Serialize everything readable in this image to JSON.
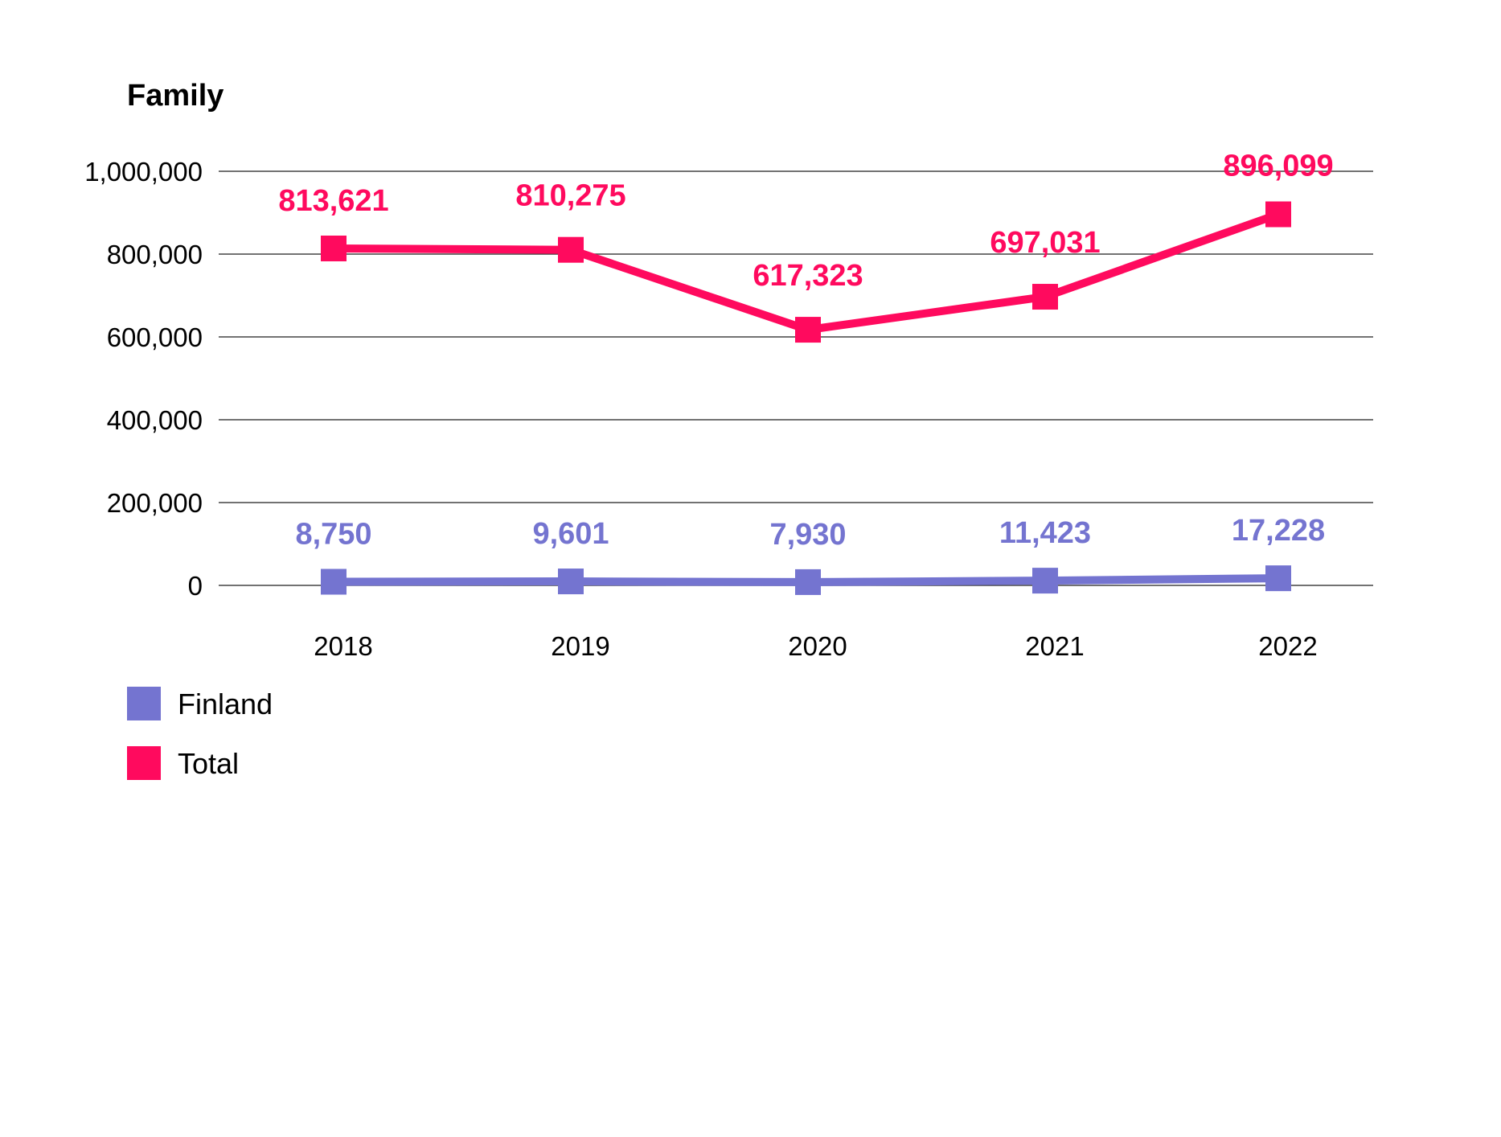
{
  "chart_data": {
    "type": "line",
    "title": "Family",
    "xlabel": "",
    "ylabel": "",
    "categories": [
      "2018",
      "2019",
      "2020",
      "2021",
      "2022"
    ],
    "ylim": [
      0,
      1000000
    ],
    "yticks": [
      0,
      200000,
      400000,
      600000,
      800000,
      1000000
    ],
    "ytick_labels": [
      "0",
      "200,000",
      "400,000",
      "600,000",
      "800,000",
      "1,000,000"
    ],
    "grid": true,
    "legend_position": "bottom-left",
    "series": [
      {
        "name": "Finland",
        "color": "#7474d0",
        "marker": "square",
        "values": [
          8750,
          9601,
          7930,
          11423,
          17228
        ],
        "labels": [
          "8,750",
          "9,601",
          "7,930",
          "11,423",
          "17,228"
        ]
      },
      {
        "name": "Total",
        "color": "#ff0a5e",
        "marker": "square",
        "values": [
          813621,
          810275,
          617323,
          697031,
          896099
        ],
        "labels": [
          "813,621",
          "810,275",
          "617,323",
          "697,031",
          "896,099"
        ]
      }
    ]
  }
}
